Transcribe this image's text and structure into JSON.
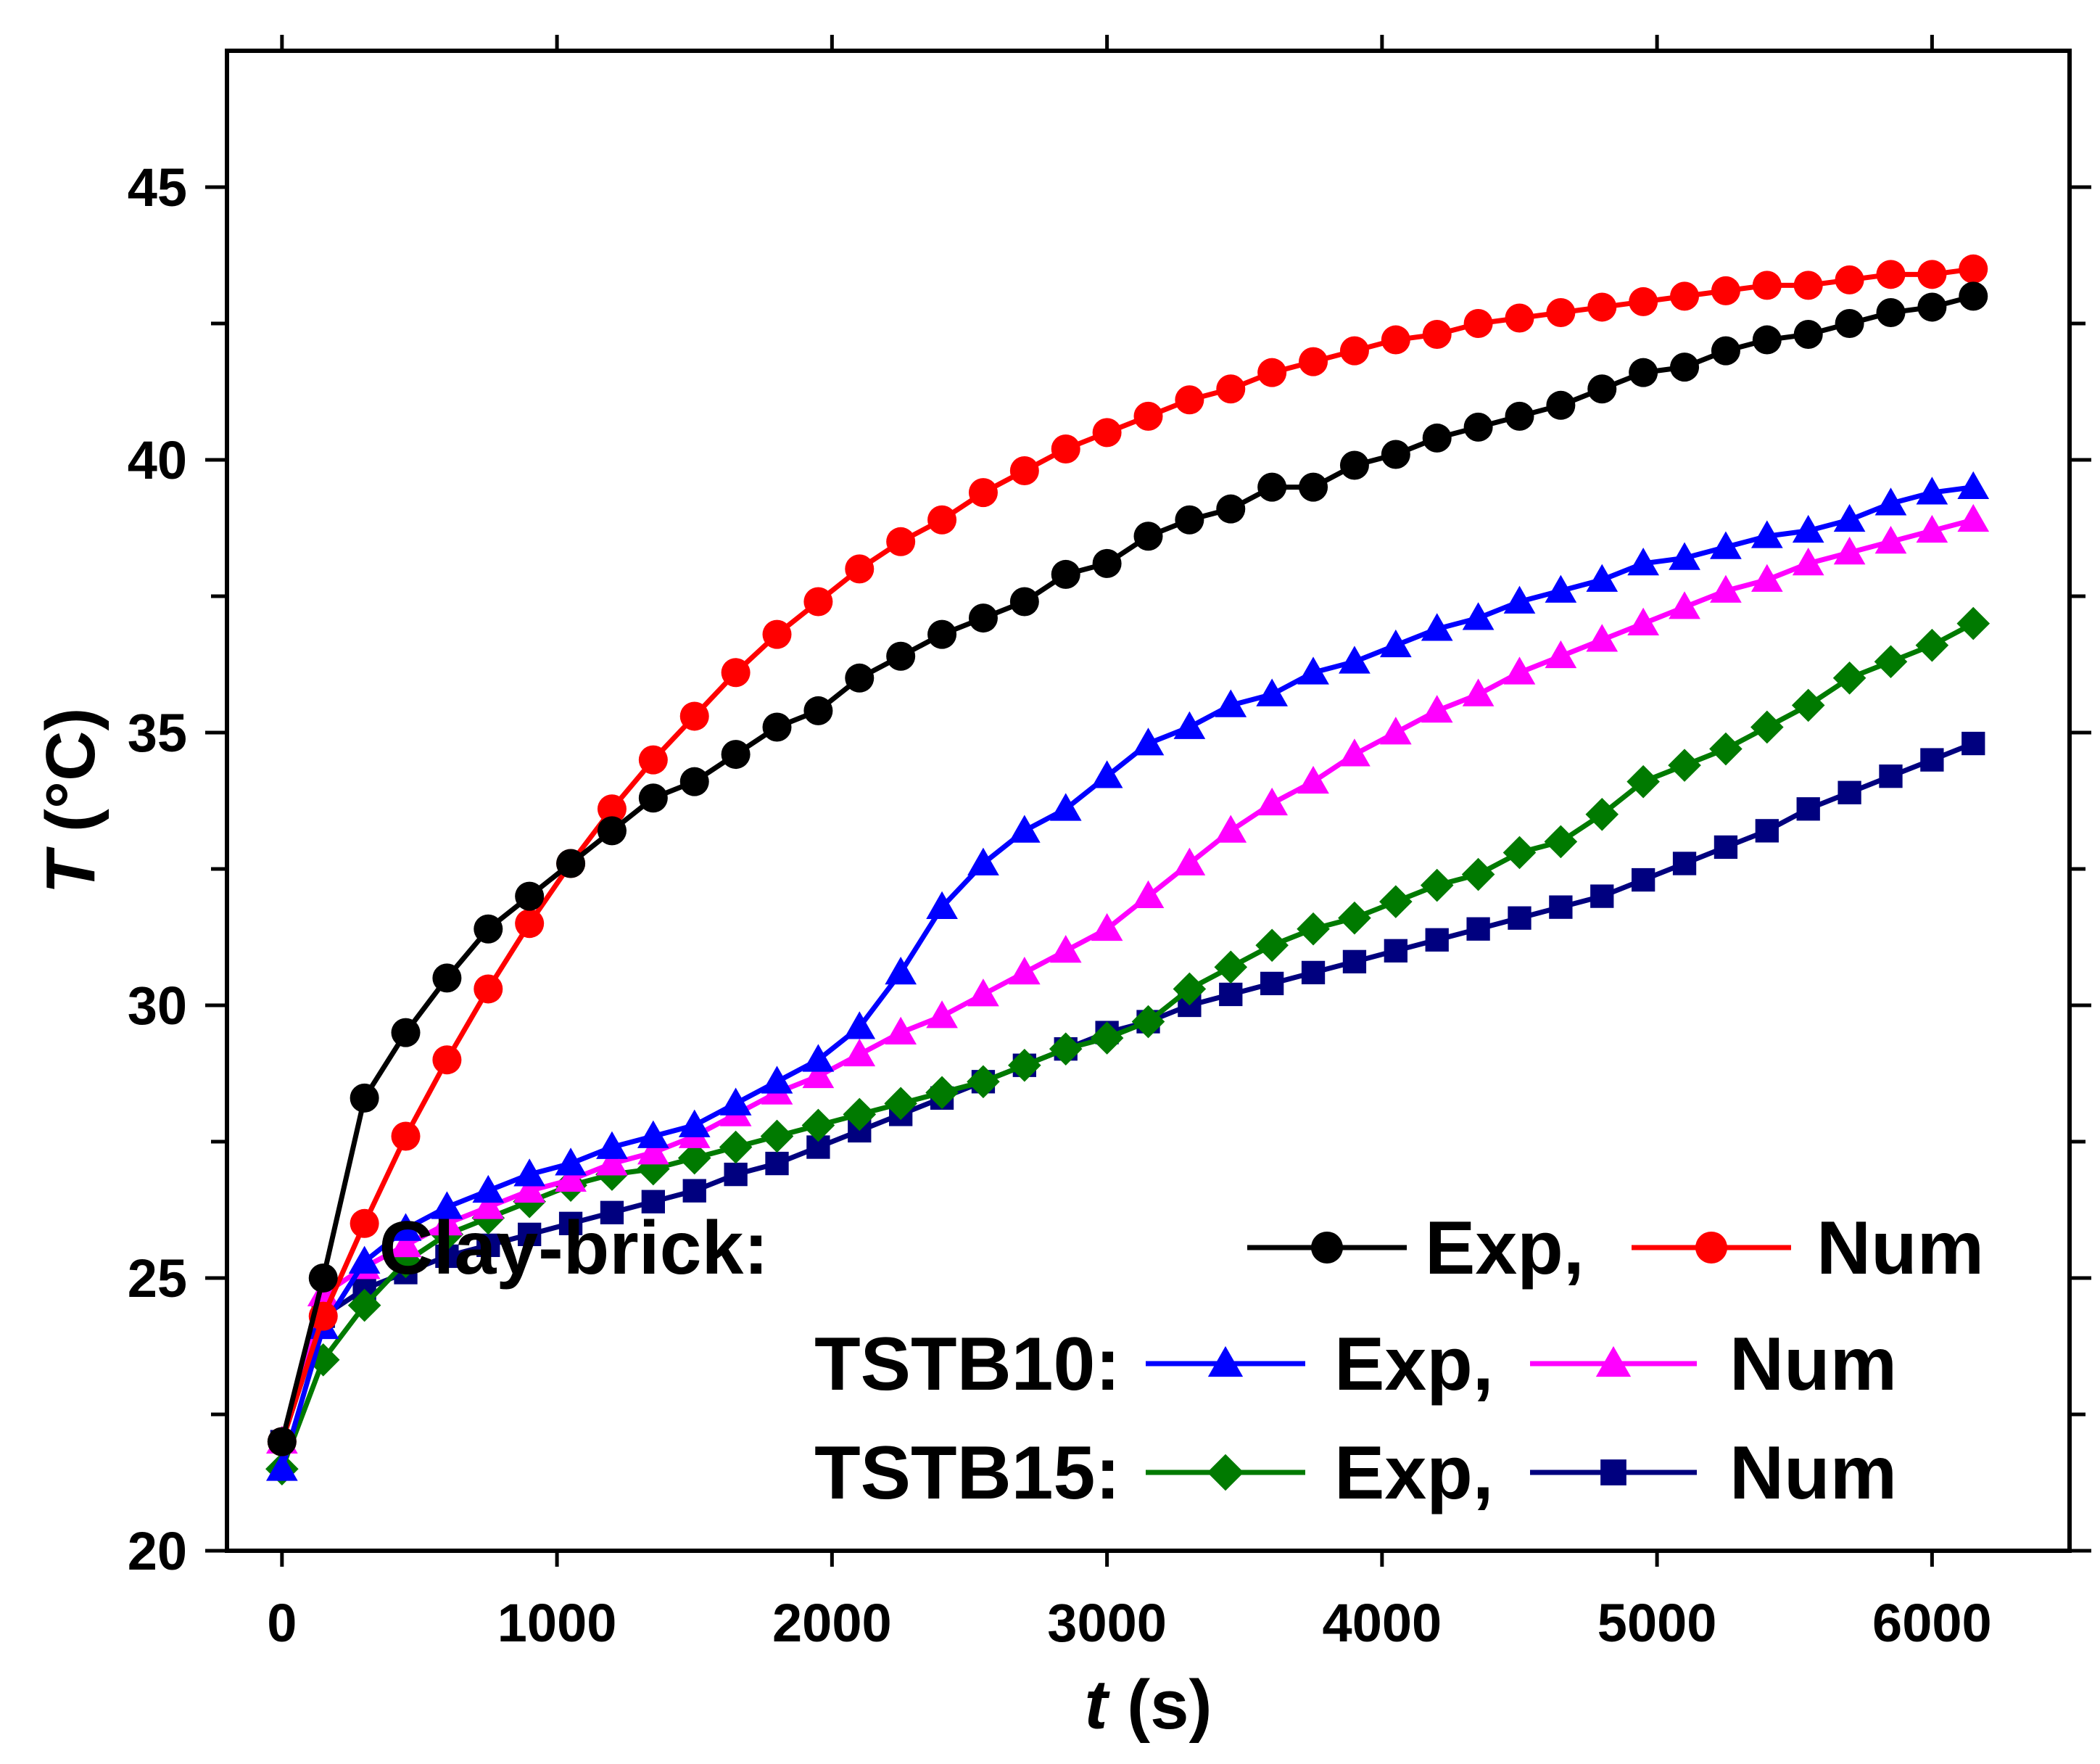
{
  "chart_data": {
    "type": "line",
    "title": "",
    "xlabel": {
      "var": "t",
      "unit": " (s)"
    },
    "ylabel": {
      "var": "T",
      "unit": " (°C)"
    },
    "xlim": [
      -200,
      6500
    ],
    "ylim": [
      20,
      47.5
    ],
    "xticks": [
      0,
      1000,
      2000,
      3000,
      4000,
      5000,
      6000
    ],
    "yticks": [
      20,
      25,
      30,
      35,
      40,
      45
    ],
    "legend_position": "bottom-right",
    "legend": {
      "rows": [
        {
          "label": "Clay-brick:",
          "exp": "Exp,",
          "num": "Num"
        },
        {
          "label": "TSTB10:",
          "exp": "Exp,",
          "num": "Num"
        },
        {
          "label": "TSTB15:",
          "exp": "Exp,",
          "num": "Num"
        }
      ]
    },
    "series": [
      {
        "name": "Clay-brick Exp",
        "marker": "circle",
        "color": "#000000",
        "x": [
          0,
          150,
          300,
          450,
          600,
          750,
          900,
          1050,
          1200,
          1350,
          1500,
          1650,
          1800,
          1950,
          2100,
          2250,
          2400,
          2550,
          2700,
          2850,
          3000,
          3150,
          3300,
          3450,
          3600,
          3750,
          3900,
          4050,
          4200,
          4350,
          4500,
          4650,
          4800,
          4950,
          5100,
          5250,
          5400,
          5550,
          5700,
          5850,
          6000,
          6150
        ],
        "values": [
          22.0,
          25.0,
          28.3,
          29.5,
          30.5,
          31.4,
          32.0,
          32.6,
          33.2,
          33.8,
          34.1,
          34.6,
          35.1,
          35.4,
          36.0,
          36.4,
          36.8,
          37.1,
          37.4,
          37.9,
          38.1,
          38.6,
          38.9,
          39.1,
          39.5,
          39.5,
          39.9,
          40.1,
          40.4,
          40.6,
          40.8,
          41.0,
          41.3,
          41.6,
          41.7,
          42.0,
          42.2,
          42.3,
          42.5,
          42.7,
          42.8,
          43.0
        ]
      },
      {
        "name": "Clay-brick Num",
        "marker": "circle",
        "color": "#ff0000",
        "x": [
          0,
          150,
          300,
          450,
          600,
          750,
          900,
          1050,
          1200,
          1350,
          1500,
          1650,
          1800,
          1950,
          2100,
          2250,
          2400,
          2550,
          2700,
          2850,
          3000,
          3150,
          3300,
          3450,
          3600,
          3750,
          3900,
          4050,
          4200,
          4350,
          4500,
          4650,
          4800,
          4950,
          5100,
          5250,
          5400,
          5550,
          5700,
          5850,
          6000,
          6150
        ],
        "values": [
          22.0,
          24.3,
          26.0,
          27.6,
          29.0,
          30.3,
          31.5,
          32.6,
          33.6,
          34.5,
          35.3,
          36.1,
          36.8,
          37.4,
          38.0,
          38.5,
          38.9,
          39.4,
          39.8,
          40.2,
          40.5,
          40.8,
          41.1,
          41.3,
          41.6,
          41.8,
          42.0,
          42.2,
          42.3,
          42.5,
          42.6,
          42.7,
          42.8,
          42.9,
          43.0,
          43.1,
          43.2,
          43.2,
          43.3,
          43.4,
          43.4,
          43.5
        ]
      },
      {
        "name": "TSTB10 Exp",
        "marker": "triangle",
        "color": "#0000ff",
        "x": [
          0,
          150,
          300,
          450,
          600,
          750,
          900,
          1050,
          1200,
          1350,
          1500,
          1650,
          1800,
          1950,
          2100,
          2250,
          2400,
          2550,
          2700,
          2850,
          3000,
          3150,
          3300,
          3450,
          3600,
          3750,
          3900,
          4050,
          4200,
          4350,
          4500,
          4650,
          4800,
          4950,
          5100,
          5250,
          5400,
          5550,
          5700,
          5850,
          6000,
          6150
        ],
        "values": [
          21.5,
          24.1,
          25.3,
          25.9,
          26.3,
          26.6,
          26.9,
          27.1,
          27.4,
          27.6,
          27.8,
          28.2,
          28.6,
          29.0,
          29.6,
          30.6,
          31.8,
          32.6,
          33.2,
          33.6,
          34.2,
          34.8,
          35.1,
          35.5,
          35.7,
          36.1,
          36.3,
          36.6,
          36.9,
          37.1,
          37.4,
          37.6,
          37.8,
          38.1,
          38.2,
          38.4,
          38.6,
          38.7,
          38.9,
          39.2,
          39.4,
          39.5
        ]
      },
      {
        "name": "TSTB10 Num",
        "marker": "triangle",
        "color": "#ff00ff",
        "x": [
          0,
          150,
          300,
          450,
          600,
          750,
          900,
          1050,
          1200,
          1350,
          1500,
          1650,
          1800,
          1950,
          2100,
          2250,
          2400,
          2550,
          2700,
          2850,
          3000,
          3150,
          3300,
          3450,
          3600,
          3750,
          3900,
          4050,
          4200,
          4350,
          4500,
          4650,
          4800,
          4950,
          5100,
          5250,
          5400,
          5550,
          5700,
          5850,
          6000,
          6150
        ],
        "values": [
          22.0,
          24.7,
          25.2,
          25.6,
          26.0,
          26.3,
          26.6,
          26.8,
          27.1,
          27.3,
          27.6,
          28.0,
          28.4,
          28.7,
          29.1,
          29.5,
          29.8,
          30.2,
          30.6,
          31.0,
          31.4,
          32.0,
          32.6,
          33.2,
          33.7,
          34.1,
          34.6,
          35.0,
          35.4,
          35.7,
          36.1,
          36.4,
          36.7,
          37.0,
          37.3,
          37.6,
          37.8,
          38.1,
          38.3,
          38.5,
          38.7,
          38.9
        ]
      },
      {
        "name": "TSTB15 Exp",
        "marker": "diamond",
        "color": "#007a00",
        "x": [
          0,
          150,
          300,
          450,
          600,
          750,
          900,
          1050,
          1200,
          1350,
          1500,
          1650,
          1800,
          1950,
          2100,
          2250,
          2400,
          2550,
          2700,
          2850,
          3000,
          3150,
          3300,
          3450,
          3600,
          3750,
          3900,
          4050,
          4200,
          4350,
          4500,
          4650,
          4800,
          4950,
          5100,
          5250,
          5400,
          5550,
          5700,
          5850,
          6000,
          6150
        ],
        "values": [
          21.5,
          23.5,
          24.5,
          25.3,
          25.8,
          26.1,
          26.4,
          26.7,
          26.9,
          27.0,
          27.2,
          27.4,
          27.6,
          27.8,
          28.0,
          28.2,
          28.4,
          28.6,
          28.9,
          29.2,
          29.4,
          29.7,
          30.3,
          30.7,
          31.1,
          31.4,
          31.6,
          31.9,
          32.2,
          32.4,
          32.8,
          33.0,
          33.5,
          34.1,
          34.4,
          34.7,
          35.1,
          35.5,
          36.0,
          36.3,
          36.6,
          37.0
        ]
      },
      {
        "name": "TSTB15 Num",
        "marker": "square",
        "color": "#00007f",
        "x": [
          0,
          150,
          300,
          450,
          600,
          750,
          900,
          1050,
          1200,
          1350,
          1500,
          1650,
          1800,
          1950,
          2100,
          2250,
          2400,
          2550,
          2700,
          2850,
          3000,
          3150,
          3300,
          3450,
          3600,
          3750,
          3900,
          4050,
          4200,
          4350,
          4500,
          4650,
          4800,
          4950,
          5100,
          5250,
          5400,
          5550,
          5700,
          5850,
          6000,
          6150
        ],
        "values": [
          22.0,
          24.3,
          24.8,
          25.1,
          25.4,
          25.6,
          25.8,
          26.0,
          26.2,
          26.4,
          26.6,
          26.9,
          27.1,
          27.4,
          27.7,
          28.0,
          28.3,
          28.6,
          28.9,
          29.2,
          29.5,
          29.7,
          30.0,
          30.2,
          30.4,
          30.6,
          30.8,
          31.0,
          31.2,
          31.4,
          31.6,
          31.8,
          32.0,
          32.3,
          32.6,
          32.9,
          33.2,
          33.6,
          33.9,
          34.2,
          34.5,
          34.8
        ]
      }
    ]
  }
}
